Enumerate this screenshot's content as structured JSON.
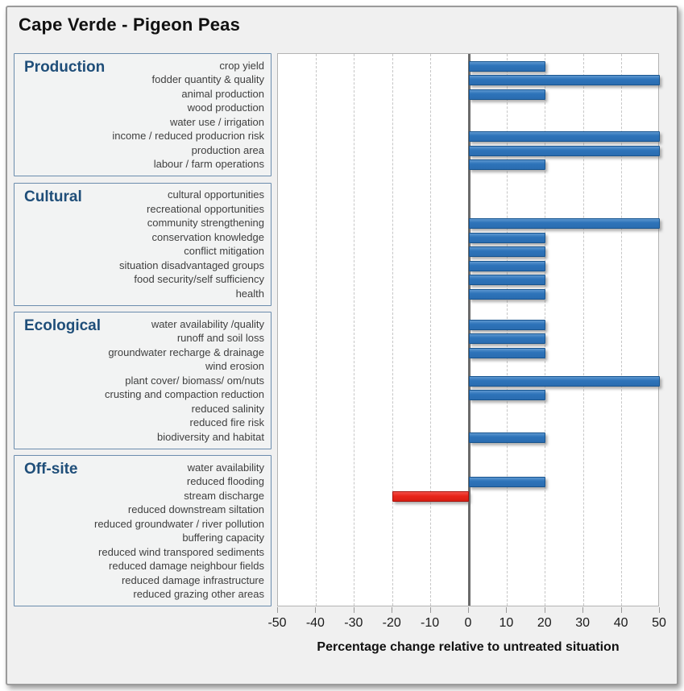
{
  "colors": {
    "frame_background": "#f0f0f0",
    "frame_border": "#9b9b9b",
    "section_box_border": "#6b8cad",
    "section_title_text": "#1f4e79",
    "row_label_text": "#3f3f3f",
    "positive_bar": "#2e74ba",
    "negative_bar": "#e8251a",
    "zero_line": "#6a6a6a",
    "gridline": "#c6c6c6"
  },
  "chart_data": {
    "type": "bar",
    "orientation": "horizontal",
    "title": "Cape Verde - Pigeon Peas",
    "xlabel": "Percentage change relative to untreated situation",
    "xlim": [
      -50,
      50
    ],
    "xticks": [
      -50,
      -40,
      -30,
      -20,
      -10,
      0,
      10,
      20,
      30,
      40,
      50
    ],
    "grid": "vertical-dashed",
    "legend": "none",
    "sections": [
      {
        "name": "Production",
        "items": [
          {
            "label": "crop yield",
            "value": 20
          },
          {
            "label": "fodder quantity & quality",
            "value": 50
          },
          {
            "label": "animal production",
            "value": 20
          },
          {
            "label": "wood production",
            "value": 0
          },
          {
            "label": "water use / irrigation",
            "value": 0
          },
          {
            "label": "income / reduced producrion risk",
            "value": 50
          },
          {
            "label": "production area",
            "value": 50
          },
          {
            "label": "labour / farm operations",
            "value": 20
          }
        ]
      },
      {
        "name": "Cultural",
        "items": [
          {
            "label": "cultural opportunities",
            "value": 0
          },
          {
            "label": "recreational opportunities",
            "value": 0
          },
          {
            "label": "community strengthening",
            "value": 50
          },
          {
            "label": "conservation knowledge",
            "value": 20
          },
          {
            "label": "conflict mitigation",
            "value": 20
          },
          {
            "label": "situation disadvantaged groups",
            "value": 20
          },
          {
            "label": "food security/self sufficiency",
            "value": 20
          },
          {
            "label": "health",
            "value": 20
          }
        ]
      },
      {
        "name": "Ecological",
        "items": [
          {
            "label": "water availability /quality",
            "value": 20
          },
          {
            "label": "runoff and soil loss",
            "value": 20
          },
          {
            "label": "groundwater recharge & drainage",
            "value": 20
          },
          {
            "label": "wind erosion",
            "value": 0
          },
          {
            "label": "plant cover/ biomass/ om/nuts",
            "value": 50
          },
          {
            "label": "crusting and compaction reduction",
            "value": 20
          },
          {
            "label": "reduced salinity",
            "value": 0
          },
          {
            "label": "reduced fire risk",
            "value": 0
          },
          {
            "label": "biodiversity and habitat",
            "value": 20
          }
        ]
      },
      {
        "name": "Off-site",
        "items": [
          {
            "label": "water availability",
            "value": 0
          },
          {
            "label": "reduced flooding",
            "value": 20
          },
          {
            "label": "stream discharge",
            "value": -20
          },
          {
            "label": "reduced downstream siltation",
            "value": 0
          },
          {
            "label": "reduced groundwater / river pollution",
            "value": 0
          },
          {
            "label": "buffering capacity",
            "value": 0
          },
          {
            "label": "reduced wind transpored sediments",
            "value": 0
          },
          {
            "label": "reduced damage neighbour fields",
            "value": 0
          },
          {
            "label": "reduced damage infrastructure",
            "value": 0
          },
          {
            "label": "reduced grazing other areas",
            "value": 0
          }
        ]
      }
    ]
  }
}
